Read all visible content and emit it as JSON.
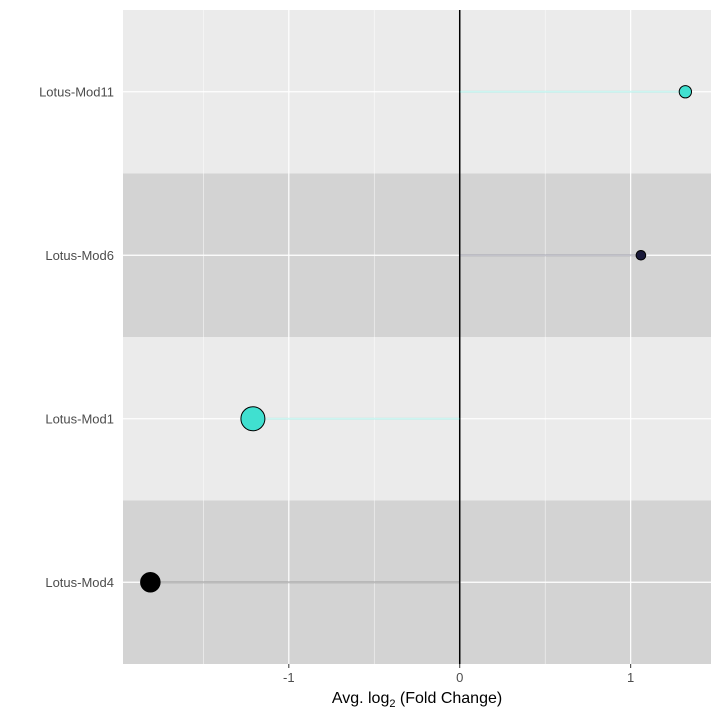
{
  "chart_data": {
    "type": "lollipop",
    "orientation": "horizontal",
    "categories": [
      "Lotus-Mod11",
      "Lotus-Mod6",
      "Lotus-Mod1",
      "Lotus-Mod4"
    ],
    "values": [
      1.32,
      1.06,
      -1.21,
      -1.81
    ],
    "relative_point_size": [
      0.35,
      0.2,
      1.0,
      0.75
    ],
    "point_colors": [
      "#40e0d0",
      "#1a1a3a",
      "#40e0d0",
      "#000000"
    ],
    "xlim": [
      -1.97,
      1.47
    ],
    "x_ticks": [
      -1,
      0,
      1
    ],
    "x_tick_labels": [
      "-1",
      "0",
      "1"
    ],
    "xlabel": "Avg. log",
    "xlabel_subscript": "2",
    "xlabel_suffix": " (Fold Change)",
    "ylabel": "",
    "reference_line_x": 0,
    "grid": true,
    "band_colors": [
      "#ebebeb",
      "#d3d3d3"
    ]
  }
}
